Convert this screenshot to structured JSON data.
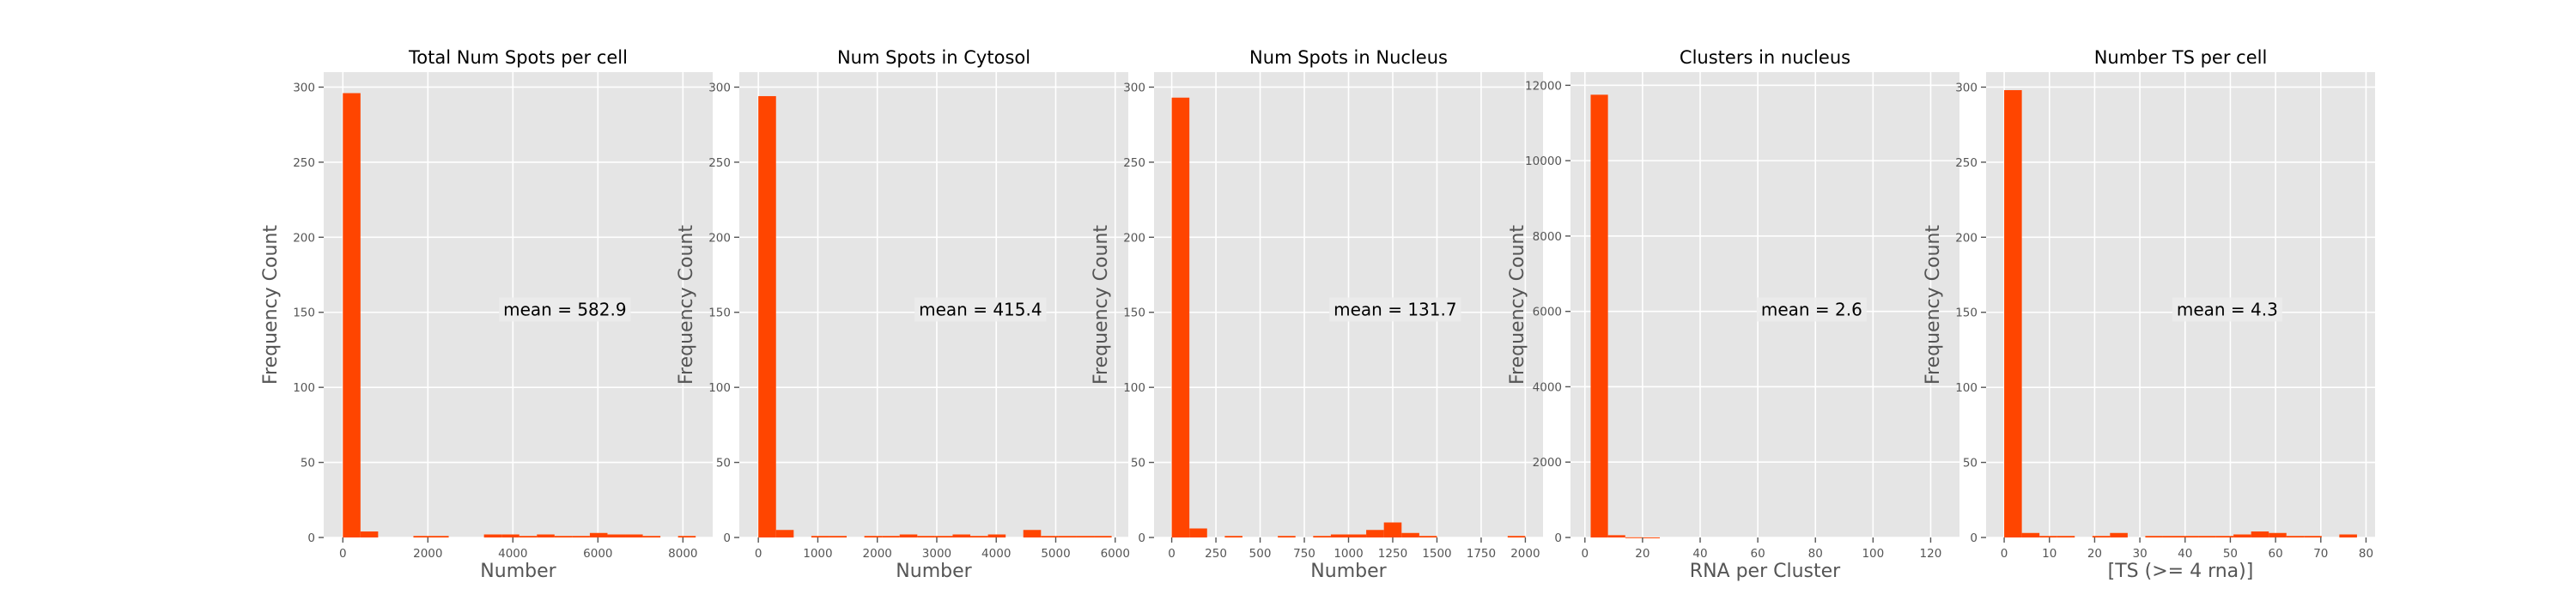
{
  "chart_data": [
    {
      "type": "bar",
      "title": "Total Num Spots per cell",
      "xlabel": "Number",
      "ylabel": "Frequency Count",
      "xlim": [
        -450,
        8700
      ],
      "ylim": [
        0,
        310
      ],
      "xticks": [
        0,
        2000,
        4000,
        6000,
        8000
      ],
      "yticks": [
        0,
        50,
        100,
        150,
        200,
        250,
        300
      ],
      "grid": true,
      "bar_color": "#ff4500",
      "annotation": "mean = 582.9",
      "bins": [
        {
          "x0": 0,
          "x1": 415,
          "count": 296
        },
        {
          "x0": 415,
          "x1": 830,
          "count": 4
        },
        {
          "x0": 830,
          "x1": 1245,
          "count": 0
        },
        {
          "x0": 1245,
          "x1": 1660,
          "count": 0
        },
        {
          "x0": 1660,
          "x1": 2075,
          "count": 1
        },
        {
          "x0": 2075,
          "x1": 2490,
          "count": 1
        },
        {
          "x0": 2490,
          "x1": 2905,
          "count": 0
        },
        {
          "x0": 2905,
          "x1": 3320,
          "count": 0
        },
        {
          "x0": 3320,
          "x1": 3735,
          "count": 2
        },
        {
          "x0": 3735,
          "x1": 4150,
          "count": 2
        },
        {
          "x0": 4150,
          "x1": 4565,
          "count": 1
        },
        {
          "x0": 4565,
          "x1": 4980,
          "count": 2
        },
        {
          "x0": 4980,
          "x1": 5395,
          "count": 1
        },
        {
          "x0": 5395,
          "x1": 5810,
          "count": 1
        },
        {
          "x0": 5810,
          "x1": 6225,
          "count": 3
        },
        {
          "x0": 6225,
          "x1": 6640,
          "count": 2
        },
        {
          "x0": 6640,
          "x1": 7055,
          "count": 2
        },
        {
          "x0": 7055,
          "x1": 7470,
          "count": 1
        },
        {
          "x0": 7470,
          "x1": 7885,
          "count": 0
        },
        {
          "x0": 7885,
          "x1": 8300,
          "count": 1
        }
      ]
    },
    {
      "type": "bar",
      "title": "Num Spots in Cytosol",
      "xlabel": "Number",
      "ylabel": "Frequency Count",
      "xlim": [
        -320,
        6220
      ],
      "ylim": [
        0,
        310
      ],
      "xticks": [
        0,
        1000,
        2000,
        3000,
        4000,
        5000,
        6000
      ],
      "yticks": [
        0,
        50,
        100,
        150,
        200,
        250,
        300
      ],
      "grid": true,
      "bar_color": "#ff4500",
      "annotation": "mean = 415.4",
      "bins": [
        {
          "x0": 0,
          "x1": 297,
          "count": 294
        },
        {
          "x0": 297,
          "x1": 594,
          "count": 5
        },
        {
          "x0": 594,
          "x1": 891,
          "count": 0
        },
        {
          "x0": 891,
          "x1": 1188,
          "count": 1
        },
        {
          "x0": 1188,
          "x1": 1485,
          "count": 1
        },
        {
          "x0": 1485,
          "x1": 1782,
          "count": 0
        },
        {
          "x0": 1782,
          "x1": 2079,
          "count": 1
        },
        {
          "x0": 2079,
          "x1": 2376,
          "count": 1
        },
        {
          "x0": 2376,
          "x1": 2673,
          "count": 2
        },
        {
          "x0": 2673,
          "x1": 2970,
          "count": 1
        },
        {
          "x0": 2970,
          "x1": 3267,
          "count": 1
        },
        {
          "x0": 3267,
          "x1": 3564,
          "count": 2
        },
        {
          "x0": 3564,
          "x1": 3861,
          "count": 1
        },
        {
          "x0": 3861,
          "x1": 4158,
          "count": 2
        },
        {
          "x0": 4158,
          "x1": 4455,
          "count": 0
        },
        {
          "x0": 4455,
          "x1": 4752,
          "count": 5
        },
        {
          "x0": 4752,
          "x1": 5049,
          "count": 1
        },
        {
          "x0": 5049,
          "x1": 5346,
          "count": 1
        },
        {
          "x0": 5346,
          "x1": 5643,
          "count": 1
        },
        {
          "x0": 5643,
          "x1": 5940,
          "count": 1
        }
      ]
    },
    {
      "type": "bar",
      "title": "Num Spots in Nucleus",
      "xlabel": "Number",
      "ylabel": "Frequency Count",
      "xlim": [
        -100,
        2100
      ],
      "ylim": [
        0,
        310
      ],
      "xticks": [
        0,
        250,
        500,
        750,
        1000,
        1250,
        1500,
        1750,
        2000
      ],
      "yticks": [
        0,
        50,
        100,
        150,
        200,
        250,
        300
      ],
      "grid": true,
      "bar_color": "#ff4500",
      "annotation": "mean = 131.7",
      "bins": [
        {
          "x0": 0,
          "x1": 100,
          "count": 293
        },
        {
          "x0": 100,
          "x1": 200,
          "count": 6
        },
        {
          "x0": 200,
          "x1": 300,
          "count": 0
        },
        {
          "x0": 300,
          "x1": 400,
          "count": 1
        },
        {
          "x0": 400,
          "x1": 500,
          "count": 0
        },
        {
          "x0": 500,
          "x1": 600,
          "count": 0
        },
        {
          "x0": 600,
          "x1": 700,
          "count": 1
        },
        {
          "x0": 700,
          "x1": 800,
          "count": 0
        },
        {
          "x0": 800,
          "x1": 900,
          "count": 1
        },
        {
          "x0": 900,
          "x1": 1000,
          "count": 2
        },
        {
          "x0": 1000,
          "x1": 1100,
          "count": 2
        },
        {
          "x0": 1100,
          "x1": 1200,
          "count": 5
        },
        {
          "x0": 1200,
          "x1": 1300,
          "count": 10
        },
        {
          "x0": 1300,
          "x1": 1400,
          "count": 3
        },
        {
          "x0": 1400,
          "x1": 1500,
          "count": 1
        },
        {
          "x0": 1500,
          "x1": 1600,
          "count": 0
        },
        {
          "x0": 1600,
          "x1": 1700,
          "count": 0
        },
        {
          "x0": 1700,
          "x1": 1800,
          "count": 0
        },
        {
          "x0": 1800,
          "x1": 1900,
          "count": 0
        },
        {
          "x0": 1900,
          "x1": 2000,
          "count": 1
        }
      ]
    },
    {
      "type": "bar",
      "title": "Clusters in nucleus",
      "xlabel": "RNA per Cluster",
      "ylabel": "Frequency Count",
      "xlim": [
        -5,
        130
      ],
      "ylim": [
        0,
        12350
      ],
      "xticks": [
        0,
        20,
        40,
        60,
        80,
        100,
        120
      ],
      "yticks": [
        0,
        2000,
        4000,
        6000,
        8000,
        10000,
        12000
      ],
      "grid": true,
      "bar_color": "#ff4500",
      "annotation": "mean = 2.6",
      "bins": [
        {
          "x0": 2,
          "x1": 8,
          "count": 11750
        },
        {
          "x0": 8,
          "x1": 14,
          "count": 60
        },
        {
          "x0": 14,
          "x1": 20,
          "count": 5
        },
        {
          "x0": 20,
          "x1": 26,
          "count": 2
        }
      ]
    },
    {
      "type": "bar",
      "title": "Number TS per cell",
      "xlabel": "[TS (>= 4 rna)]",
      "ylabel": "Frequency Count",
      "xlim": [
        -4,
        82
      ],
      "ylim": [
        0,
        310
      ],
      "xticks": [
        0,
        10,
        20,
        30,
        40,
        50,
        60,
        70,
        80
      ],
      "yticks": [
        0,
        50,
        100,
        150,
        200,
        250,
        300
      ],
      "grid": true,
      "bar_color": "#ff4500",
      "annotation": "mean = 4.3",
      "bins": [
        {
          "x0": 0,
          "x1": 3.9,
          "count": 298
        },
        {
          "x0": 3.9,
          "x1": 7.8,
          "count": 3
        },
        {
          "x0": 7.8,
          "x1": 11.7,
          "count": 1
        },
        {
          "x0": 11.7,
          "x1": 15.6,
          "count": 1
        },
        {
          "x0": 15.6,
          "x1": 19.5,
          "count": 0
        },
        {
          "x0": 19.5,
          "x1": 23.4,
          "count": 1
        },
        {
          "x0": 23.4,
          "x1": 27.3,
          "count": 3
        },
        {
          "x0": 27.3,
          "x1": 31.2,
          "count": 0
        },
        {
          "x0": 31.2,
          "x1": 35.1,
          "count": 1
        },
        {
          "x0": 35.1,
          "x1": 39.0,
          "count": 1
        },
        {
          "x0": 39.0,
          "x1": 42.9,
          "count": 1
        },
        {
          "x0": 42.9,
          "x1": 46.8,
          "count": 1
        },
        {
          "x0": 46.8,
          "x1": 50.7,
          "count": 1
        },
        {
          "x0": 50.7,
          "x1": 54.6,
          "count": 2
        },
        {
          "x0": 54.6,
          "x1": 58.5,
          "count": 4
        },
        {
          "x0": 58.5,
          "x1": 62.4,
          "count": 3
        },
        {
          "x0": 62.4,
          "x1": 66.3,
          "count": 1
        },
        {
          "x0": 66.3,
          "x1": 70.2,
          "count": 1
        },
        {
          "x0": 70.2,
          "x1": 74.1,
          "count": 0
        },
        {
          "x0": 74.1,
          "x1": 78.0,
          "count": 2
        }
      ]
    }
  ]
}
